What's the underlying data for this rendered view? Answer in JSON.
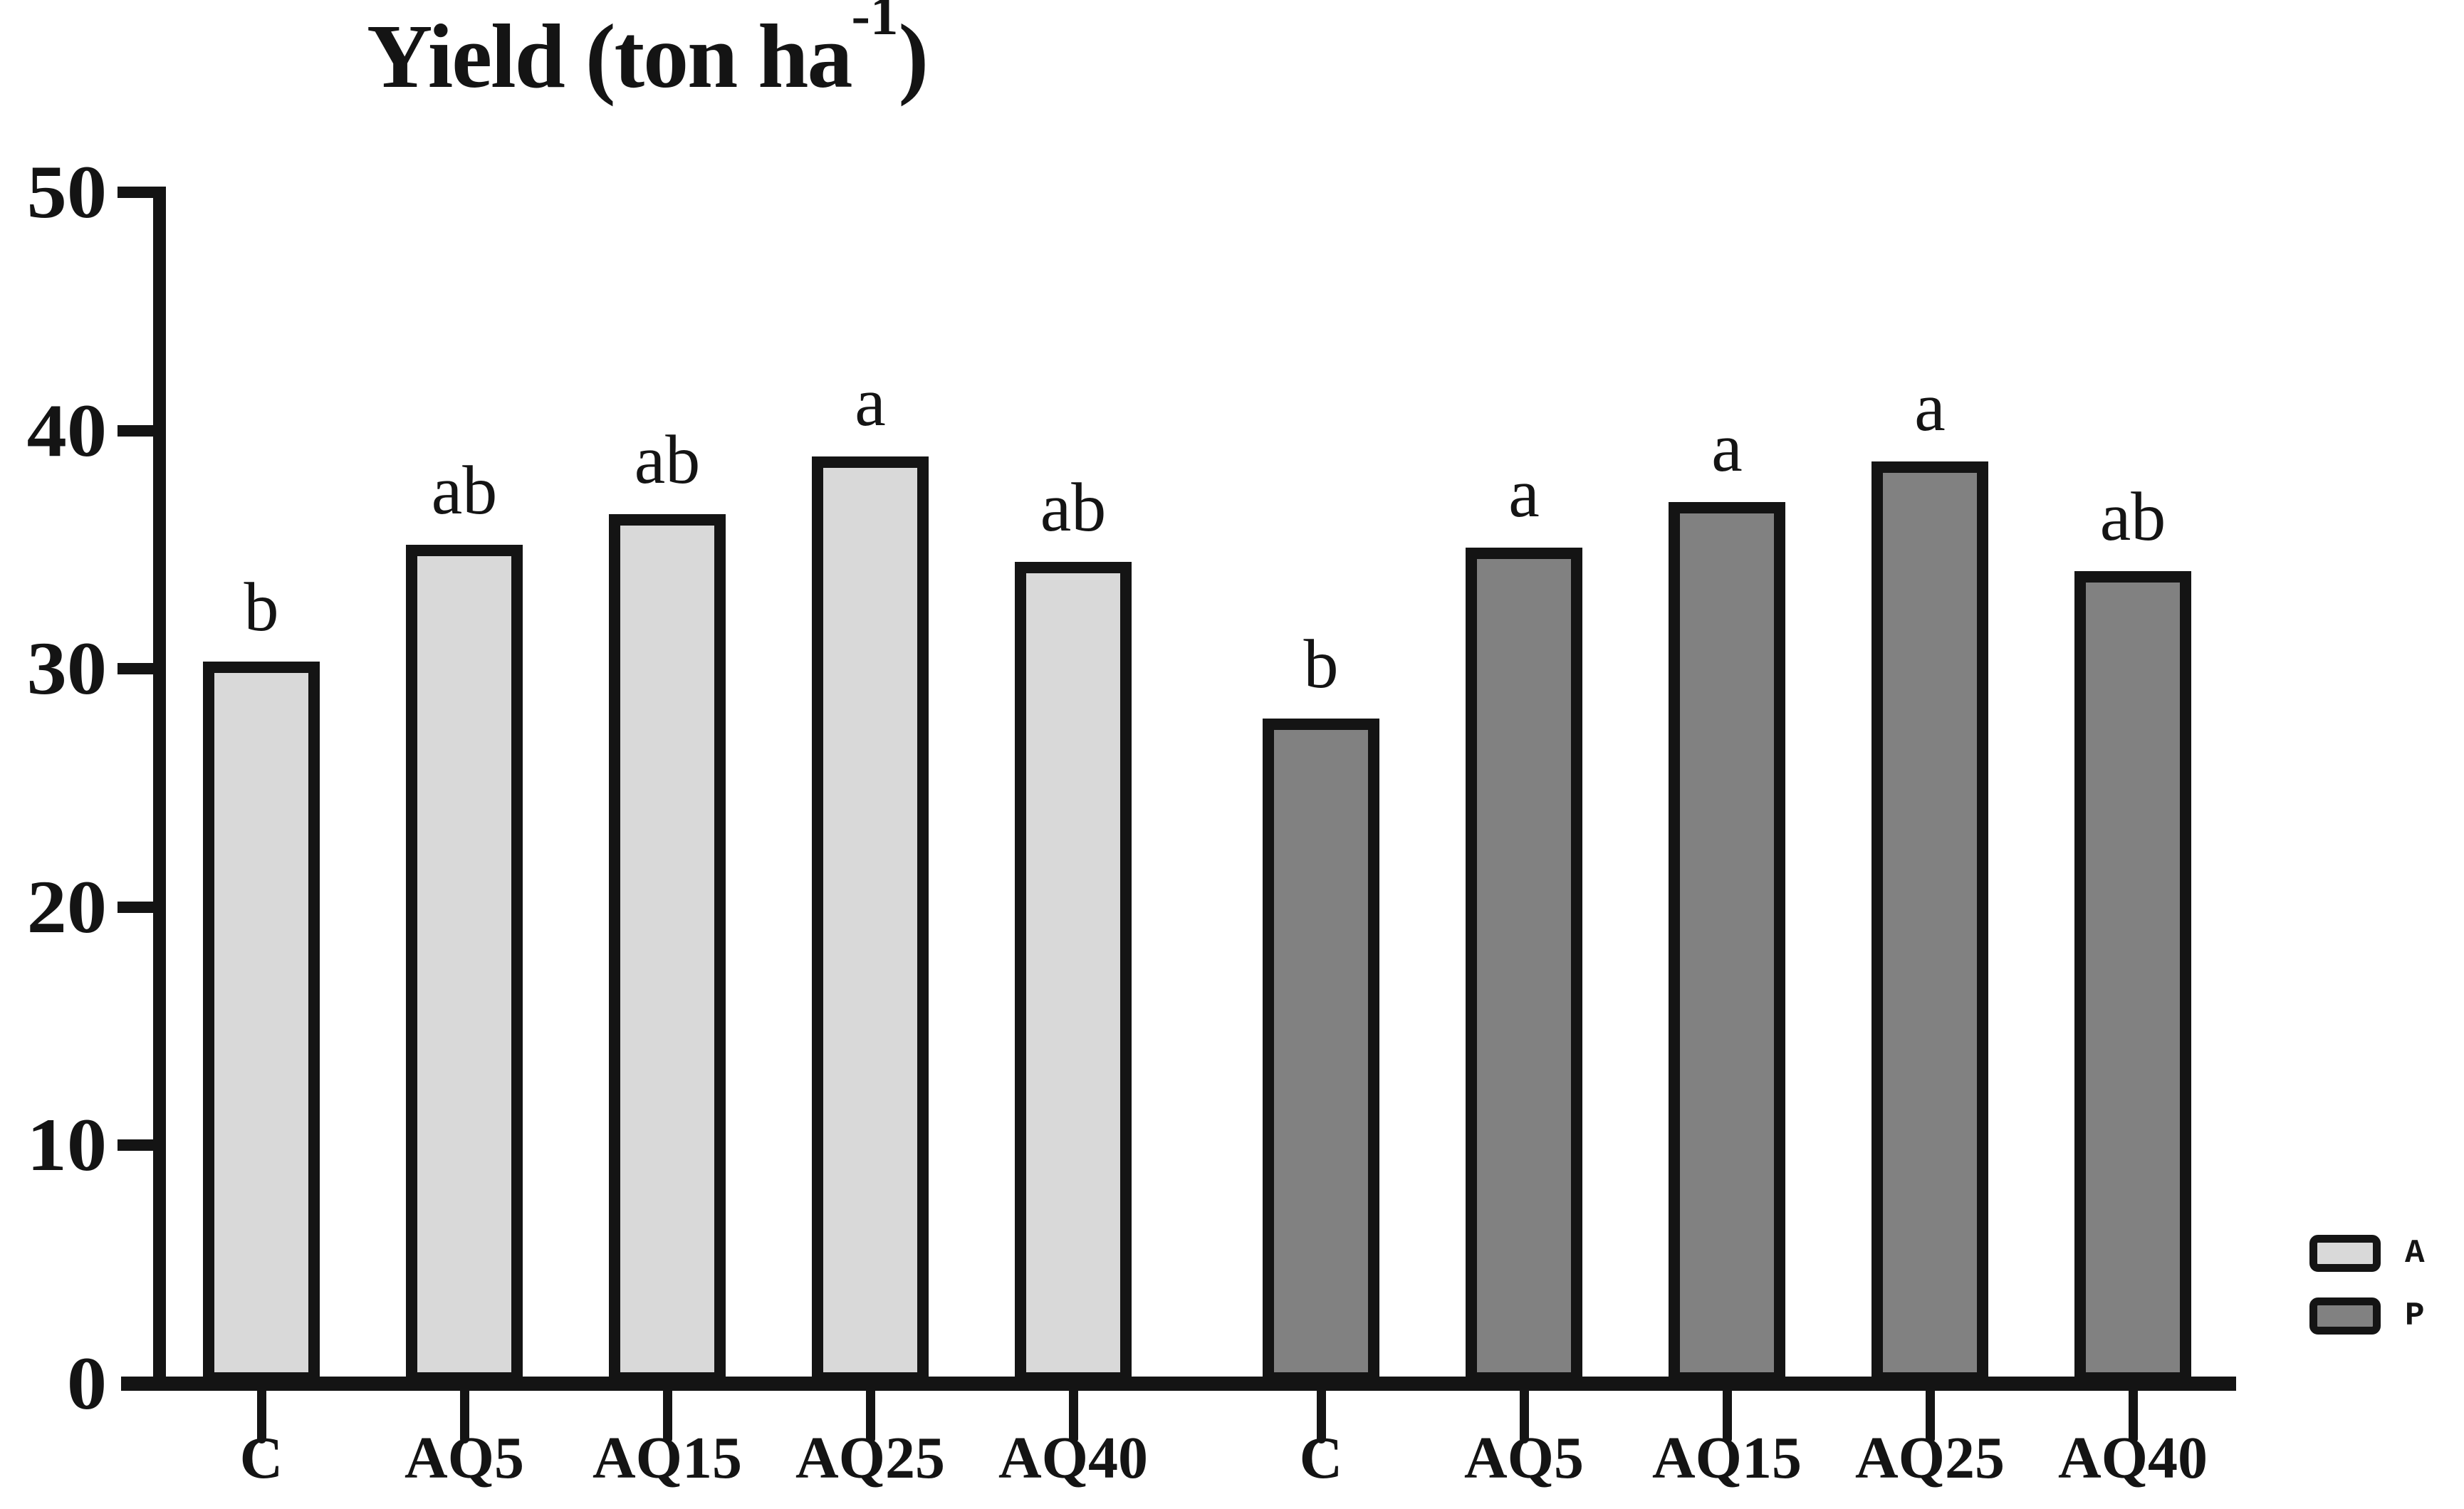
{
  "chart_data": {
    "type": "bar",
    "title": "Yield (ton ha⁻¹)",
    "title_parts": {
      "prefix": "Yield (ton ha",
      "superscript": "-1",
      "suffix": ")"
    },
    "xlabel": "",
    "ylabel": "",
    "ylim": [
      0,
      50
    ],
    "yticks": [
      0,
      10,
      20,
      30,
      40,
      50
    ],
    "categories": [
      "C",
      "AQ5",
      "AQ15",
      "AQ25",
      "AQ40"
    ],
    "series": [
      {
        "name": "A",
        "color": "#d9d9d9",
        "values": [
          30.3,
          35.2,
          36.5,
          38.9,
          34.5
        ],
        "sig_labels": [
          "b",
          "ab",
          "ab",
          "a",
          "ab"
        ]
      },
      {
        "name": "P",
        "color": "#818181",
        "values": [
          27.9,
          35.1,
          37.0,
          38.7,
          34.1
        ],
        "sig_labels": [
          "b",
          "a",
          "a",
          "a",
          "ab"
        ]
      }
    ],
    "grid": false,
    "legend_position": "bottom-right",
    "axis_color": "#141414",
    "background": "#ffffff"
  }
}
